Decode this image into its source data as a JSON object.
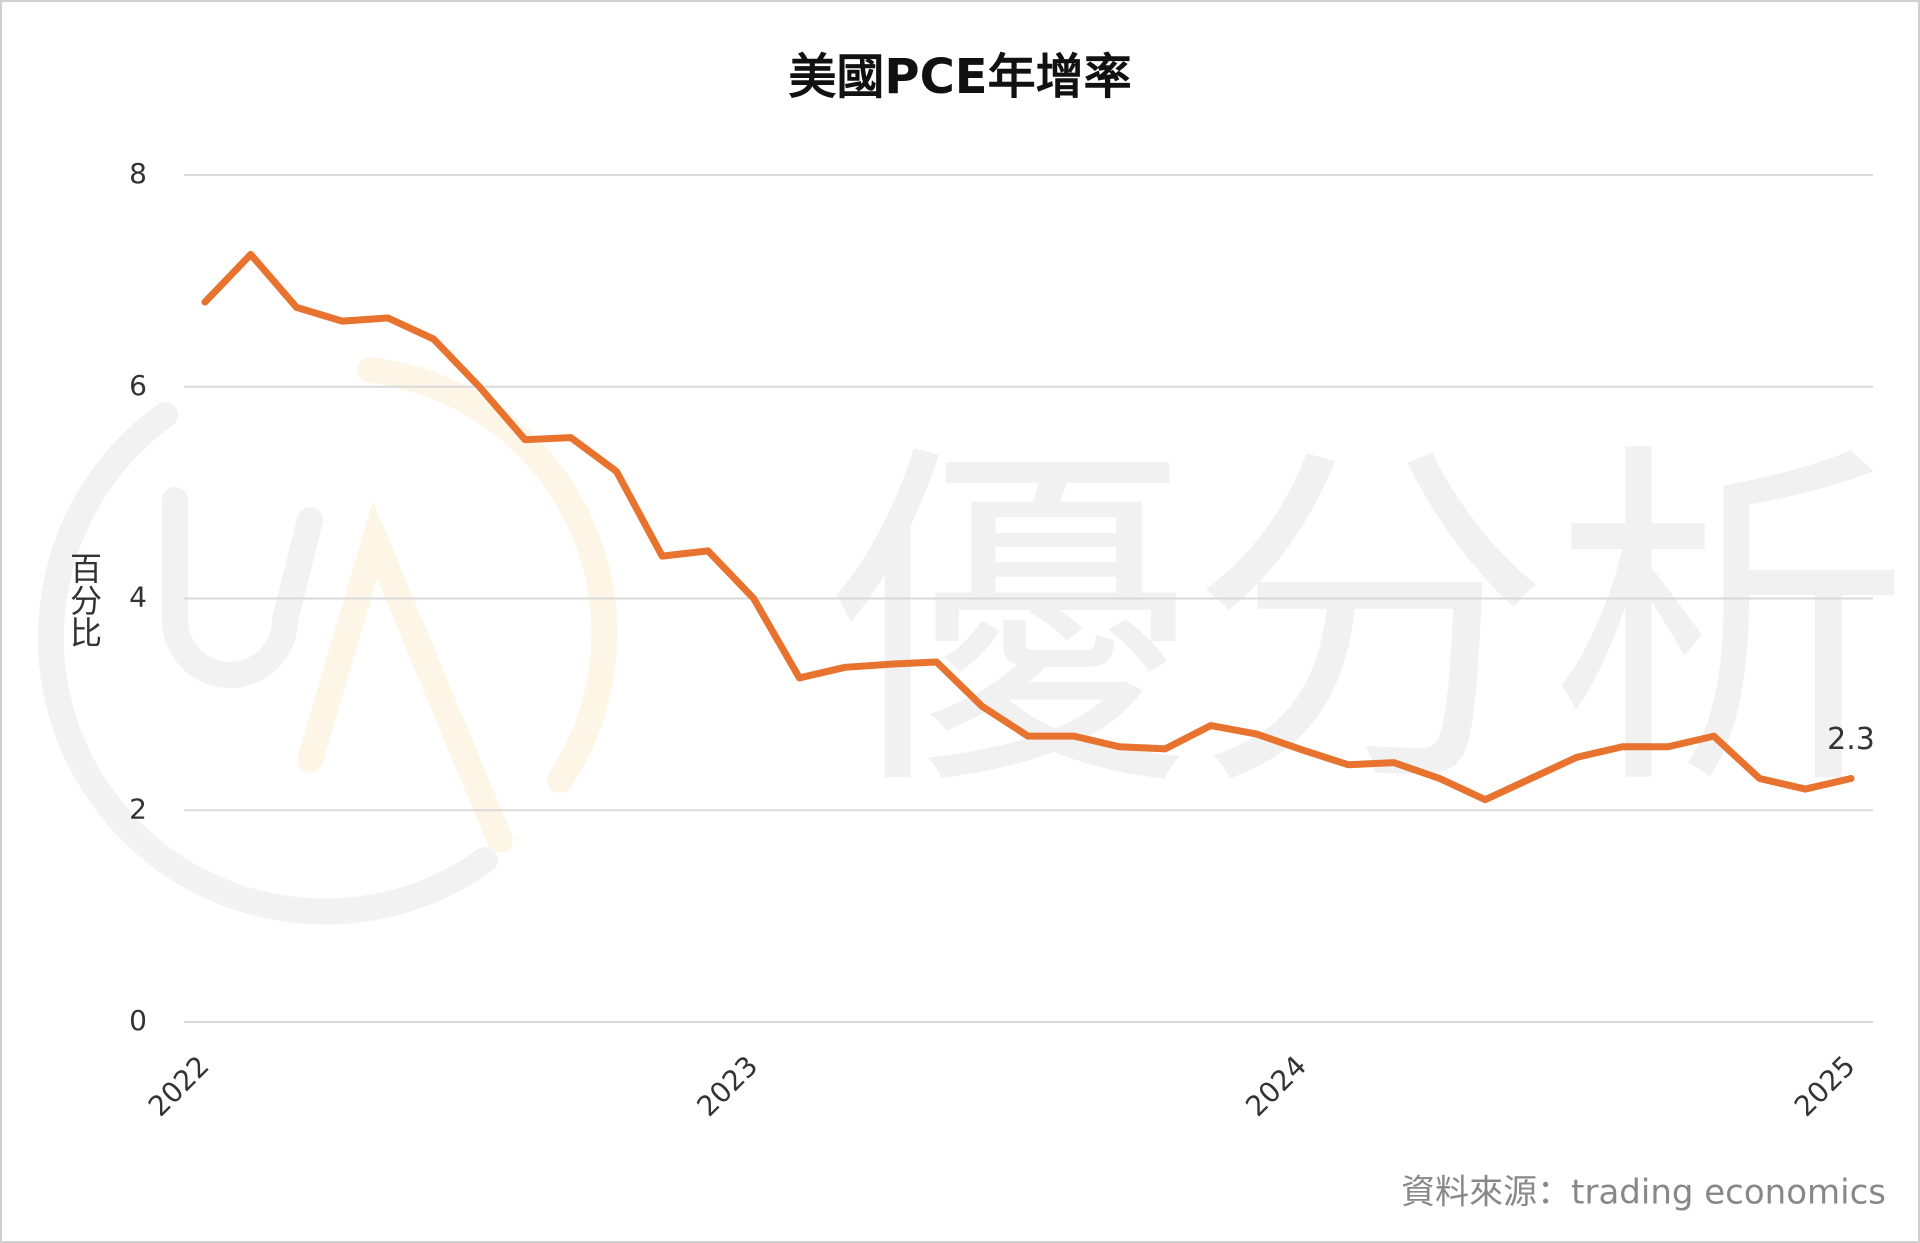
{
  "chart_data": {
    "type": "line",
    "title": "美國PCE年增率",
    "ylabel": "百分比",
    "source": "資料來源：trading economics",
    "watermark": "優分析",
    "categories": [
      "2022",
      null,
      null,
      null,
      null,
      null,
      null,
      null,
      null,
      null,
      null,
      null,
      "2023",
      null,
      null,
      null,
      null,
      null,
      null,
      null,
      null,
      null,
      null,
      null,
      "2024",
      null,
      null,
      null,
      null,
      null,
      null,
      null,
      null,
      null,
      null,
      null,
      "2025"
    ],
    "series": [
      {
        "name": "PCE",
        "color": "#e8732f",
        "values": [
          6.8,
          7.25,
          6.75,
          6.62,
          6.65,
          6.45,
          6.0,
          5.5,
          5.52,
          5.2,
          4.4,
          4.45,
          4.0,
          3.25,
          3.35,
          3.38,
          3.4,
          2.98,
          2.7,
          2.7,
          2.6,
          2.58,
          2.8,
          2.72,
          2.57,
          2.43,
          2.45,
          2.3,
          2.1,
          2.3,
          2.5,
          2.6,
          2.6,
          2.7,
          2.3,
          2.2,
          2.3
        ]
      }
    ],
    "ylim": [
      0,
      8
    ],
    "yticks": [
      0,
      2,
      4,
      6,
      8
    ],
    "grid": true,
    "last_value_label": true
  }
}
